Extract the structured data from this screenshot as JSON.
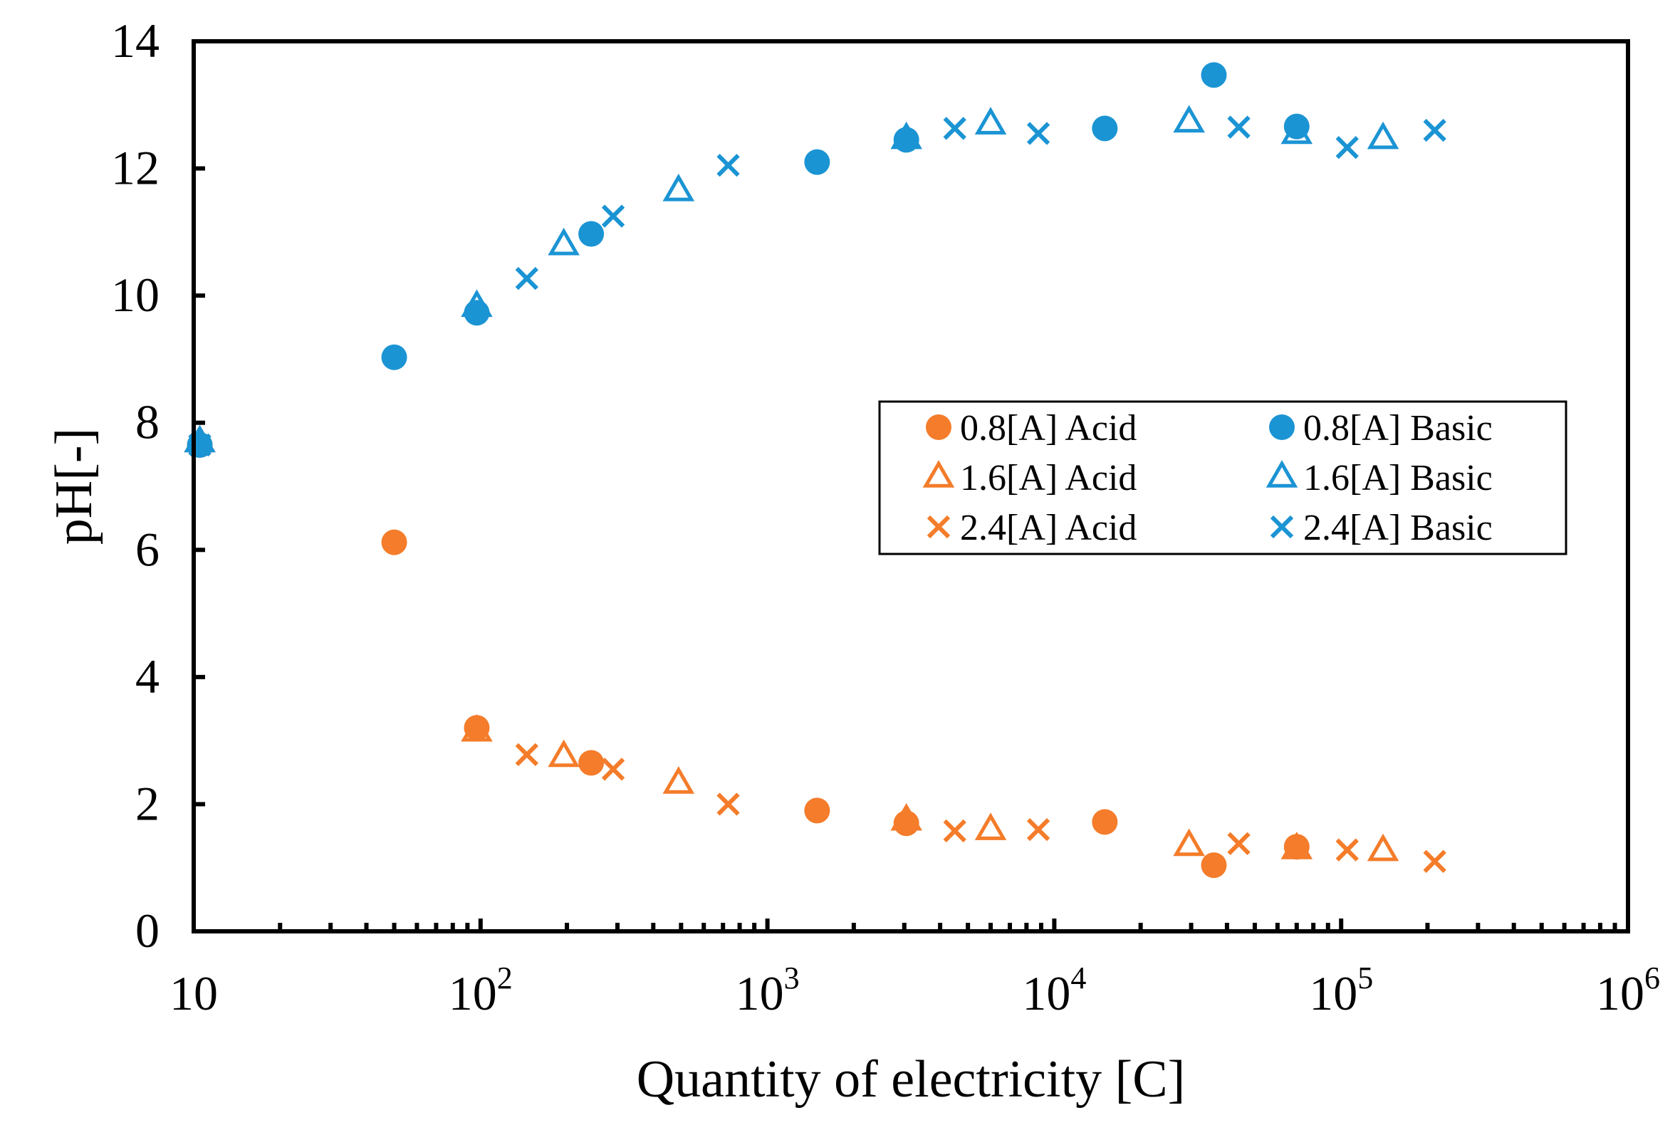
{
  "chart_data": {
    "type": "scatter",
    "title": "",
    "xlabel": "Quantity of electricity [C]",
    "ylabel": "pH[-]",
    "xscale": "log",
    "xlim": [
      10,
      1000000
    ],
    "ylim": [
      0,
      14
    ],
    "x_ticks": [
      {
        "base": "10",
        "exp": ""
      },
      {
        "base": "10",
        "exp": "2"
      },
      {
        "base": "10",
        "exp": "3"
      },
      {
        "base": "10",
        "exp": "4"
      },
      {
        "base": "10",
        "exp": "5"
      },
      {
        "base": "10",
        "exp": "6"
      }
    ],
    "y_ticks": [
      "0",
      "2",
      "4",
      "6",
      "8",
      "10",
      "12",
      "14"
    ],
    "legend_position": "center-right",
    "colors": {
      "acid": "#f47c2a",
      "basic": "#1b94d4"
    },
    "series": [
      {
        "name": "0.8[A] Acid",
        "marker": "circle",
        "group": "acid",
        "points": [
          [
            10.5,
            7.65
          ],
          [
            50,
            6.12
          ],
          [
            97,
            3.2
          ],
          [
            243,
            2.65
          ],
          [
            1490,
            1.9
          ],
          [
            3050,
            1.7
          ],
          [
            15000,
            1.72
          ],
          [
            36000,
            1.04
          ],
          [
            70000,
            1.33
          ]
        ]
      },
      {
        "name": "1.6[A] Acid",
        "marker": "triangle",
        "group": "acid",
        "points": [
          [
            10.5,
            7.7
          ],
          [
            97,
            3.15
          ],
          [
            195,
            2.75
          ],
          [
            490,
            2.33
          ],
          [
            3050,
            1.75
          ],
          [
            6000,
            1.6
          ],
          [
            29500,
            1.35
          ],
          [
            70000,
            1.3
          ],
          [
            140000,
            1.27
          ]
        ]
      },
      {
        "name": "2.4[A] Acid",
        "marker": "x",
        "group": "acid",
        "points": [
          [
            10.5,
            7.65
          ],
          [
            145,
            2.78
          ],
          [
            290,
            2.55
          ],
          [
            730,
            2.0
          ],
          [
            4500,
            1.58
          ],
          [
            8800,
            1.6
          ],
          [
            44000,
            1.38
          ],
          [
            105000,
            1.28
          ],
          [
            212000,
            1.1
          ]
        ]
      },
      {
        "name": "0.8[A] Basic",
        "marker": "circle",
        "group": "basic",
        "points": [
          [
            10.5,
            7.65
          ],
          [
            50,
            9.03
          ],
          [
            97,
            9.73
          ],
          [
            243,
            10.97
          ],
          [
            1490,
            12.1
          ],
          [
            3050,
            12.45
          ],
          [
            15000,
            12.63
          ],
          [
            36000,
            13.47
          ],
          [
            70000,
            12.66
          ]
        ]
      },
      {
        "name": "1.6[A] Basic",
        "marker": "triangle",
        "group": "basic",
        "points": [
          [
            10.5,
            7.7
          ],
          [
            97,
            9.83
          ],
          [
            195,
            10.8
          ],
          [
            490,
            11.65
          ],
          [
            3050,
            12.47
          ],
          [
            6000,
            12.7
          ],
          [
            29500,
            12.73
          ],
          [
            70000,
            12.55
          ],
          [
            140000,
            12.47
          ]
        ]
      },
      {
        "name": "2.4[A] Basic",
        "marker": "x",
        "group": "basic",
        "points": [
          [
            10.5,
            7.65
          ],
          [
            145,
            10.27
          ],
          [
            290,
            11.25
          ],
          [
            730,
            12.05
          ],
          [
            4500,
            12.63
          ],
          [
            8800,
            12.55
          ],
          [
            44000,
            12.65
          ],
          [
            105000,
            12.33
          ],
          [
            212000,
            12.6
          ]
        ]
      }
    ]
  }
}
